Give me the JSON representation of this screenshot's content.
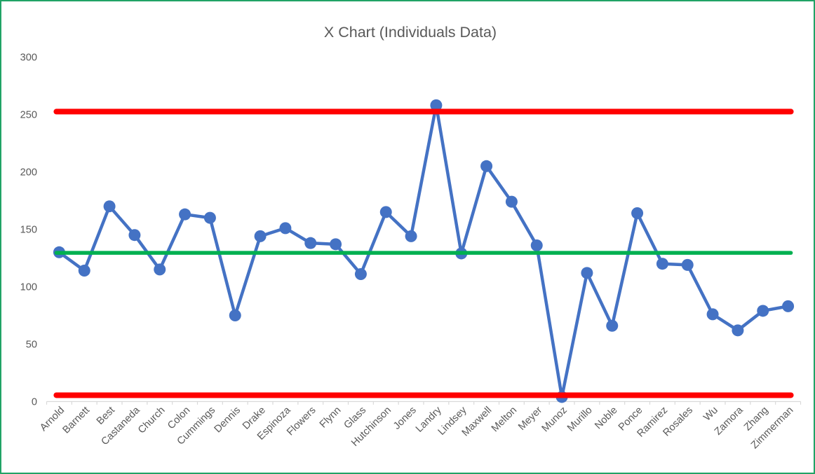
{
  "chart_data": {
    "type": "line",
    "title": "X Chart (Individuals Data)",
    "categories": [
      "Arnold",
      "Barnett",
      "Best",
      "Castaneda",
      "Church",
      "Colon",
      "Cummings",
      "Dennis",
      "Drake",
      "Espinoza",
      "Flowers",
      "Flynn",
      "Glass",
      "Hutchinson",
      "Jones",
      "Landry",
      "Lindsey",
      "Maxwell",
      "Melton",
      "Meyer",
      "Munoz",
      "Murillo",
      "Noble",
      "Ponce",
      "Ramirez",
      "Rosales",
      "Wu",
      "Zamora",
      "Zhang",
      "Zimmerman"
    ],
    "series": [
      {
        "name": "individuals",
        "color": "#4472C4",
        "values": [
          130,
          114,
          170,
          145,
          115,
          163,
          160,
          75,
          144,
          151,
          138,
          137,
          111,
          165,
          144,
          258,
          129,
          205,
          174,
          136,
          4,
          112,
          66,
          164,
          120,
          119,
          76,
          62,
          79,
          83
        ]
      }
    ],
    "control_lines": {
      "ucl": {
        "value": 252.5,
        "color": "#FF0000"
      },
      "center": {
        "value": 129.5,
        "color": "#00B050"
      },
      "lcl": {
        "value": 5.5,
        "color": "#FF0000"
      }
    },
    "y_axis": {
      "min": 0,
      "max": 300,
      "ticks": [
        0,
        50,
        100,
        150,
        200,
        250,
        300
      ]
    },
    "x_axis": {
      "label_rotation_deg": -45
    },
    "grid": false,
    "legend": false,
    "styles": {
      "text_color": "#595959",
      "axis_color": "#D9D9D9",
      "frame_border_color": "#21A366",
      "background": "#FFFFFF"
    }
  }
}
